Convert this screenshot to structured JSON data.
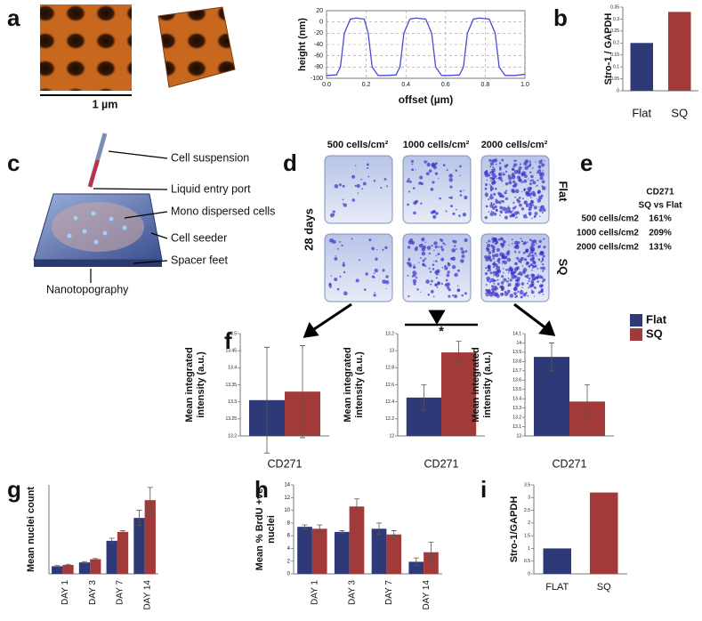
{
  "panels": [
    "a",
    "b",
    "c",
    "d",
    "e",
    "f",
    "g",
    "h",
    "i"
  ],
  "scale_bar": "1 µm",
  "diagram": {
    "labels": [
      "Cell suspension",
      "Liquid entry port",
      "Mono dispersed cells",
      "Cell seeder",
      "Spacer feet"
    ],
    "base": "Nanotopography"
  },
  "colony": {
    "columns": [
      "500 cells/cm²",
      "1000 cells/cm²",
      "2000 cells/cm²"
    ],
    "time": "28 days",
    "rows": [
      "Flat",
      "SQ"
    ]
  },
  "table": {
    "header": [
      "CD271",
      "SQ vs Flat"
    ],
    "rows": [
      [
        "500 cells/cm2",
        "161%"
      ],
      [
        "1000 cells/cm2",
        "209%"
      ],
      [
        "2000 cells/cm2",
        "131%"
      ]
    ]
  },
  "chart_data": [
    {
      "type": "line",
      "x_label": "offset (µm)",
      "y_label": "height (nm)",
      "x": [
        0,
        0.05,
        0.07,
        0.09,
        0.12,
        0.15,
        0.19,
        0.21,
        0.23,
        0.26,
        0.3,
        0.35,
        0.37,
        0.39,
        0.42,
        0.45,
        0.5,
        0.53,
        0.55,
        0.58,
        0.62,
        0.67,
        0.69,
        0.71,
        0.74,
        0.77,
        0.82,
        0.85,
        0.87,
        0.9,
        0.95,
        1.0
      ],
      "series": [
        {
          "color": "#4b4bd6",
          "values": [
            -95,
            -94,
            -80,
            -20,
            5,
            7,
            5,
            -20,
            -80,
            -95,
            -95,
            -94,
            -80,
            -20,
            5,
            7,
            5,
            -20,
            -80,
            -95,
            -95,
            -94,
            -80,
            -20,
            5,
            7,
            5,
            -20,
            -80,
            -95,
            -95,
            -93
          ]
        }
      ],
      "xlim": [
        0,
        1
      ],
      "xticks": [
        {
          "value": 0,
          "label": "0.0"
        },
        0.2,
        0.4,
        0.6,
        0.8,
        {
          "value": 1,
          "label": "1.0"
        }
      ],
      "ylim": [
        -100,
        20
      ],
      "yticks": [
        -100,
        -80,
        -60,
        -40,
        -20,
        0,
        20
      ],
      "grid": true
    },
    {
      "type": "bar",
      "y_label": "Stro-1 / GAPDH",
      "categories": [
        "Flat",
        "SQ"
      ],
      "values": [
        0.2,
        0.33
      ],
      "colors": [
        "#2e3a78",
        "#a33a3a"
      ],
      "ylim": [
        0,
        0.35
      ],
      "yticks": [
        0,
        0.05,
        0.1,
        0.15,
        0.2,
        0.25,
        0.3,
        0.35
      ]
    },
    {
      "type": "bar",
      "y_label": [
        "Mean integrated",
        "intensity (a.u.)"
      ],
      "categories": [
        "CD271"
      ],
      "series": [
        {
          "color": "#2e3a78",
          "values": [
            13.305
          ],
          "errors": [
            0.155
          ]
        },
        {
          "color": "#a33a3a",
          "values": [
            13.33
          ],
          "errors": [
            0.135
          ]
        }
      ],
      "ylim": [
        13.2,
        13.5
      ],
      "yticks": [
        13.2,
        13.25,
        13.3,
        13.35,
        13.4,
        13.45,
        13.5
      ]
    },
    {
      "type": "bar",
      "y_label": [
        "Mean integrated",
        "intensity (a.u.)"
      ],
      "categories": [
        "CD271"
      ],
      "annotation": "*",
      "series": [
        {
          "color": "#2e3a78",
          "values": [
            12.45
          ],
          "errors": [
            0.15
          ]
        },
        {
          "color": "#a33a3a",
          "values": [
            12.98
          ],
          "errors": [
            0.13
          ]
        }
      ],
      "ylim": [
        12,
        13.2
      ],
      "yticks": [
        12,
        12.2,
        12.4,
        12.6,
        12.8,
        13,
        13.2
      ]
    },
    {
      "type": "bar",
      "y_label": [
        "Mean integrated",
        "intensity (a.u.)"
      ],
      "categories": [
        "CD271"
      ],
      "legend": "right",
      "series": [
        {
          "name": "Flat",
          "color": "#2e3a78",
          "values": [
            13.85
          ],
          "errors": [
            0.15
          ]
        },
        {
          "name": "SQ",
          "color": "#a33a3a",
          "values": [
            13.37
          ],
          "errors": [
            0.18
          ]
        }
      ],
      "ylim": [
        13,
        14.1
      ],
      "yticks": [
        13,
        13.1,
        13.2,
        13.3,
        13.4,
        13.5,
        13.6,
        13.7,
        13.8,
        13.9,
        14,
        14.1
      ]
    },
    {
      "type": "bar",
      "y_label": "Mean nuclei count",
      "categories": [
        "DAY 1",
        "DAY 3",
        "DAY 7",
        "DAY 14"
      ],
      "series": [
        {
          "color": "#2e3a78",
          "values": [
            60,
            90,
            260,
            440
          ],
          "errors": [
            5,
            6,
            20,
            60
          ]
        },
        {
          "color": "#a33a3a",
          "values": [
            70,
            115,
            330,
            580
          ],
          "errors": [
            5,
            6,
            10,
            100
          ]
        }
      ],
      "ylim": [
        0,
        700
      ]
    },
    {
      "type": "bar",
      "y_label": [
        "Mean % BrdU +ve",
        "nuclei"
      ],
      "categories": [
        "DAY 1",
        "DAY 3",
        "DAY 7",
        "DAY 14"
      ],
      "series": [
        {
          "color": "#2e3a78",
          "values": [
            7.4,
            6.6,
            7.1,
            1.9
          ],
          "errors": [
            0.3,
            0.2,
            0.9,
            0.6
          ]
        },
        {
          "color": "#a33a3a",
          "values": [
            7.1,
            10.6,
            6.2,
            3.4
          ],
          "errors": [
            0.6,
            1.2,
            0.6,
            1.6
          ]
        }
      ],
      "ylim": [
        0,
        14
      ],
      "yticks": [
        0,
        2,
        4,
        6,
        8,
        10,
        12,
        14
      ]
    },
    {
      "type": "bar",
      "y_label": "Stro-1/GAPDH",
      "categories": [
        "FLAT",
        "SQ"
      ],
      "values": [
        1,
        3.2
      ],
      "colors": [
        "#2e3a78",
        "#a33a3a"
      ],
      "ylim": [
        0,
        3.5
      ],
      "yticks": [
        0,
        0.5,
        1,
        1.5,
        2,
        2.5,
        3,
        3.5
      ]
    }
  ]
}
